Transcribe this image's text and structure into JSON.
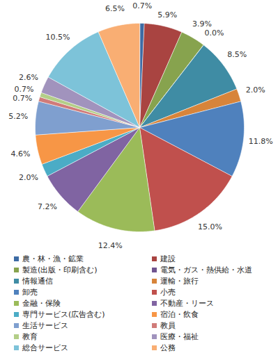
{
  "chart_data": {
    "type": "pie",
    "categories": [
      "農・林・漁・鉱業",
      "建設",
      "製造(出版・印刷含む)",
      "電気・ガス・熱供給・水道",
      "情報通信",
      "運輸・旅行",
      "卸売",
      "小売",
      "金融・保険",
      "不動産・リース",
      "専門サービス(広告含む)",
      "宿泊・飲食",
      "生活サービス",
      "教員",
      "教育",
      "医療・福祉",
      "総合サービス",
      "公務"
    ],
    "values": [
      0.7,
      5.9,
      3.9,
      0.0,
      8.5,
      2.0,
      11.8,
      15.0,
      12.4,
      7.2,
      2.0,
      4.6,
      5.2,
      0.7,
      0.7,
      2.6,
      10.5,
      6.5
    ],
    "value_labels": [
      "0.7%",
      "5.9%",
      "3.9%",
      "0.0%",
      "8.5%",
      "2.0%",
      "11.8%",
      "15.0%",
      "12.4%",
      "7.2%",
      "2.0%",
      "4.6%",
      "5.2%",
      "0.7%",
      "0.7%",
      "2.6%",
      "10.5%",
      "6.5%"
    ],
    "colors": [
      "#3D6BA4",
      "#A94441",
      "#87A34E",
      "#705490",
      "#3F8CA4",
      "#D7843A",
      "#4F81BD",
      "#C0504D",
      "#9BBB59",
      "#8064A2",
      "#4BACC6",
      "#F79646",
      "#7F9FCF",
      "#D07B79",
      "#B3CE87",
      "#A193BD",
      "#7DC3D9",
      "#F9AE73"
    ],
    "data_labels": true,
    "legend": "bottom"
  }
}
